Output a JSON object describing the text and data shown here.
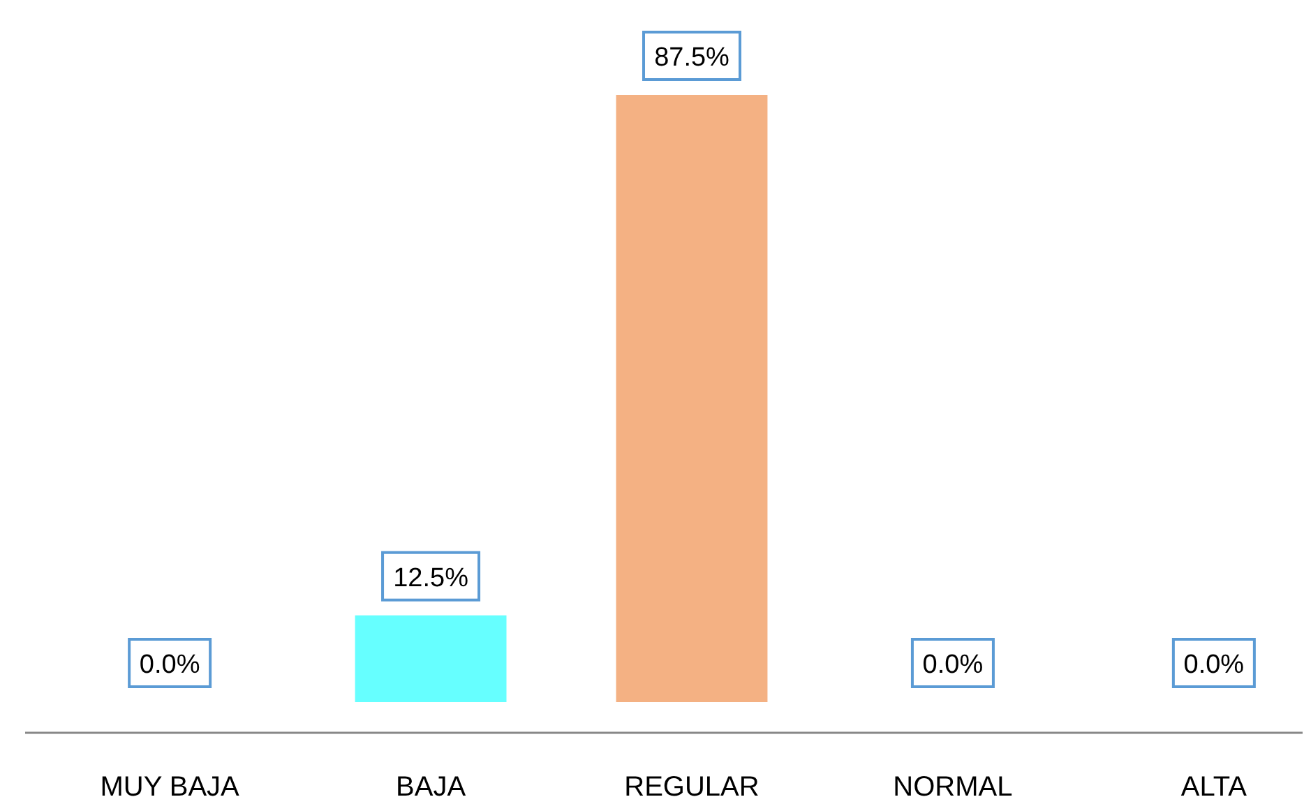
{
  "chart_data": {
    "type": "bar",
    "categories": [
      "MUY BAJA",
      "BAJA",
      "REGULAR",
      "NORMAL",
      "ALTA"
    ],
    "values": [
      0,
      12.5,
      87.5,
      0,
      0
    ],
    "colors": [
      "#70a33a",
      "#66ffff",
      "#f4b183",
      "#ff99cc",
      "#4a7fb0"
    ],
    "value_labels": [
      "0.0%",
      "12.5%",
      "87.5%",
      "0.0%",
      "0.0%"
    ]
  }
}
